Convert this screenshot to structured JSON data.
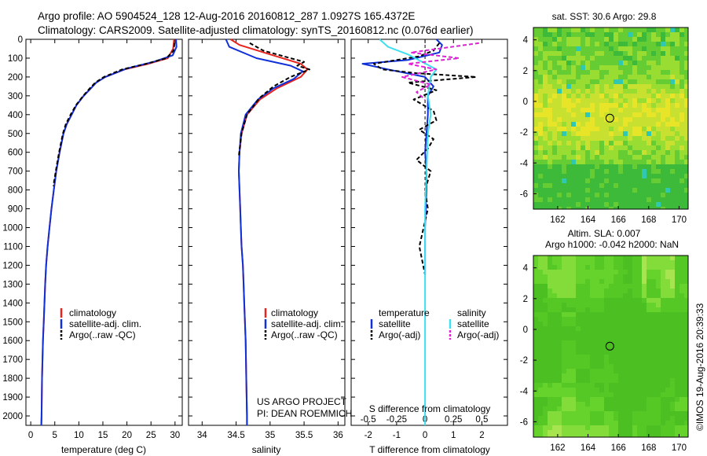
{
  "title": {
    "line1": "Argo profile: AO 5904524_128 12-Aug-2016 20160812_287 1.0927S 165.4372E",
    "line2": "Climatology: CARS2009. Satellite-adjusted climatology: synTS_20160812.nc (0.076d earlier)"
  },
  "colors": {
    "climatology": "#e8231d",
    "satellite_t": "#1030d8",
    "argo": "#000000",
    "satellite_s": "#3ee0f0",
    "argo_s": "#e020d8"
  },
  "project": {
    "line1": "US ARGO PROJECT",
    "line2": "PI: DEAN ROEMMICH"
  },
  "footer": "©IMOS 19-Aug-2016 20:39:33",
  "chart_data": [
    {
      "type": "line",
      "name": "temperature profile",
      "xlabel": "temperature (deg C)",
      "ylabel": "",
      "xlim": [
        -1,
        31.5
      ],
      "ylim": [
        2050,
        0
      ],
      "xticks": [
        0,
        5,
        10,
        15,
        20,
        25,
        30
      ],
      "yticks": [
        0,
        100,
        200,
        300,
        400,
        500,
        600,
        700,
        800,
        900,
        1000,
        1100,
        1200,
        1300,
        1400,
        1500,
        1600,
        1700,
        1800,
        1900,
        2000
      ],
      "legend": [
        "climatology",
        "satellite-adj. clim.",
        "Argo(..raw -QC)"
      ],
      "series": [
        {
          "name": "climatology",
          "color": "#e8231d",
          "style": "solid",
          "x": [
            29.8,
            29.6,
            28.5,
            24.5,
            19.5,
            15.5,
            13.6,
            12.5,
            11.0,
            9.5,
            8.5,
            7.5,
            6.8,
            6.0,
            5.3,
            4.8,
            4.3,
            3.9,
            3.5,
            3.2,
            3.0,
            2.85,
            2.7,
            2.55,
            2.45,
            2.35,
            2.3,
            2.25,
            2.2
          ],
          "y": [
            0,
            50,
            100,
            130,
            160,
            200,
            230,
            260,
            300,
            350,
            400,
            450,
            500,
            600,
            700,
            800,
            900,
            1000,
            1100,
            1200,
            1300,
            1400,
            1500,
            1600,
            1700,
            1800,
            1900,
            2000,
            2050
          ]
        },
        {
          "name": "satellite-adj. clim.",
          "color": "#1030d8",
          "style": "solid",
          "x": [
            30.2,
            30.3,
            29.5,
            25.5,
            20.0,
            15.5,
            13.6,
            12.5,
            11.0,
            9.5,
            8.5,
            7.5,
            6.8,
            6.0,
            5.3,
            4.8,
            4.3,
            3.9,
            3.5,
            3.2,
            3.0,
            2.85,
            2.7,
            2.55,
            2.45,
            2.35,
            2.3,
            2.25,
            2.2
          ],
          "y": [
            0,
            40,
            85,
            120,
            155,
            200,
            230,
            260,
            300,
            350,
            400,
            450,
            500,
            600,
            700,
            800,
            900,
            1000,
            1100,
            1200,
            1300,
            1400,
            1500,
            1600,
            1700,
            1800,
            1900,
            2000,
            2050
          ]
        },
        {
          "name": "Argo(..raw -QC)",
          "color": "#000000",
          "style": "dashed",
          "x": [
            29.9,
            29.7,
            28.2,
            24.0,
            19.0,
            15.2,
            13.4,
            12.3,
            10.9,
            9.4,
            8.3,
            7.3,
            6.7,
            5.9,
            5.2,
            4.7
          ],
          "y": [
            20,
            60,
            100,
            130,
            160,
            200,
            230,
            260,
            300,
            350,
            400,
            450,
            500,
            600,
            700,
            780
          ]
        }
      ]
    },
    {
      "type": "line",
      "name": "salinity profile",
      "xlabel": "salinity",
      "ylabel": "",
      "xlim": [
        33.8,
        36.1
      ],
      "ylim": [
        2050,
        0
      ],
      "xticks": [
        34,
        34.5,
        35,
        35.5,
        36
      ],
      "legend": [
        "climatology",
        "satellite-adj. clim.",
        "Argo(..raw -QC)"
      ],
      "series": [
        {
          "name": "climatology",
          "color": "#e8231d",
          "style": "solid",
          "x": [
            34.42,
            34.55,
            35.0,
            35.45,
            35.55,
            35.45,
            35.1,
            34.85,
            34.66,
            34.58,
            34.55,
            34.54,
            34.55,
            34.56,
            34.57,
            34.58,
            34.6,
            34.61,
            34.62,
            34.63,
            34.64,
            34.65,
            34.66,
            34.66
          ],
          "y": [
            0,
            30,
            80,
            130,
            160,
            200,
            260,
            320,
            400,
            500,
            600,
            700,
            800,
            900,
            1000,
            1100,
            1200,
            1300,
            1400,
            1500,
            1600,
            1800,
            2000,
            2050
          ]
        },
        {
          "name": "satellite-adj. clim.",
          "color": "#1030d8",
          "style": "solid",
          "x": [
            34.35,
            34.4,
            34.8,
            35.3,
            35.48,
            35.35,
            35.05,
            34.82,
            34.64,
            34.57,
            34.55,
            34.54,
            34.55,
            34.56,
            34.57,
            34.58,
            34.6,
            34.61,
            34.62,
            34.63,
            34.64,
            34.65,
            34.66,
            34.66
          ],
          "y": [
            0,
            40,
            100,
            140,
            170,
            210,
            260,
            320,
            400,
            500,
            600,
            700,
            800,
            900,
            1000,
            1100,
            1200,
            1300,
            1400,
            1500,
            1600,
            1800,
            2000,
            2050
          ]
        },
        {
          "name": "Argo(..raw -QC)",
          "color": "#000000",
          "style": "dashed",
          "x": [
            34.7,
            34.9,
            35.3,
            35.5,
            35.4,
            35.58,
            35.3,
            35.05,
            34.85,
            34.66,
            34.58,
            34.54
          ],
          "y": [
            20,
            60,
            100,
            120,
            140,
            160,
            200,
            250,
            310,
            400,
            500,
            620
          ]
        }
      ]
    },
    {
      "type": "line",
      "name": "difference from climatology",
      "xlabel": "T difference from climatology",
      "xlabel2": "S difference from climatology",
      "xlim": [
        -2.6,
        2.9
      ],
      "ylim": [
        2050,
        0
      ],
      "xticks": [
        -2,
        -1,
        0,
        1,
        2
      ],
      "xticks2": [
        -0.5,
        -0.25,
        0,
        0.25,
        0.5
      ],
      "legend": {
        "temperature": [
          "satellite",
          "Argo(-adj)"
        ],
        "salinity": [
          "satellite",
          "Argo(-adj)"
        ]
      },
      "legend_titles": [
        "temperature",
        "salinity"
      ],
      "series": [
        {
          "name": "temperature satellite",
          "color": "#1030d8",
          "style": "solid",
          "x": [
            0.4,
            0.6,
            0.5,
            -0.6,
            -2.2,
            -1.3,
            0.0,
            0.3,
            0.1,
            0.1,
            0.05,
            0.0,
            0.05,
            0.05,
            0.0,
            0.0
          ],
          "y": [
            0,
            30,
            70,
            110,
            130,
            160,
            200,
            250,
            300,
            400,
            500,
            600,
            700,
            800,
            1000,
            1250
          ]
        },
        {
          "name": "temperature Argo(-adj)",
          "color": "#000000",
          "style": "dashed",
          "x": [
            0.5,
            0.3,
            -0.2,
            -1.8,
            -1.5,
            -0.3,
            1.8,
            -0.6,
            0.4,
            -0.4,
            0.3,
            0.4,
            -0.2,
            0.3,
            0.1,
            -0.3,
            0.2,
            0.0,
            0.1,
            -0.2,
            0.0
          ],
          "y": [
            20,
            60,
            90,
            130,
            160,
            180,
            200,
            230,
            270,
            320,
            380,
            430,
            480,
            530,
            580,
            640,
            700,
            800,
            900,
            1100,
            1250
          ]
        },
        {
          "name": "salinity satellite",
          "color": "#3ee0f0",
          "style": "solid",
          "x": [
            -1.6,
            -1.3,
            -0.6,
            -0.1,
            0.4,
            0.2,
            0.1,
            0.2,
            0.1,
            0.05,
            0.0,
            0.0,
            0.0,
            0.0
          ],
          "y": [
            0,
            40,
            80,
            120,
            160,
            200,
            300,
            400,
            500,
            700,
            900,
            1300,
            1700,
            2050
          ]
        },
        {
          "name": "salinity Argo(-adj)",
          "color": "#e020d8",
          "style": "dashed",
          "x": [
            1.9,
            -0.5,
            1.2,
            -0.6,
            0.4,
            -0.8,
            0.2,
            -0.3,
            0.0
          ],
          "y": [
            20,
            70,
            100,
            130,
            160,
            200,
            240,
            280,
            320
          ]
        }
      ]
    },
    {
      "type": "heatmap",
      "name": "SST map",
      "title": "sat. SST: 30.6 Argo: 29.8",
      "xlim": [
        160.4,
        170.6
      ],
      "ylim": [
        -7.0,
        4.8
      ],
      "xticks": [
        162,
        164,
        166,
        168,
        170
      ],
      "yticks": [
        -6,
        -4,
        -2,
        0,
        2,
        4
      ],
      "marker": {
        "lon": 165.44,
        "lat": -1.09
      }
    },
    {
      "type": "heatmap",
      "name": "SLA map",
      "title": "Altim. SLA: 0.007",
      "subtitle": "Argo h1000: -0.042 h2000: NaN",
      "xlim": [
        160.4,
        170.6
      ],
      "ylim": [
        -7.0,
        4.8
      ],
      "xticks": [
        162,
        164,
        166,
        168,
        170
      ],
      "yticks": [
        -6,
        -4,
        -2,
        0,
        2,
        4
      ],
      "marker": {
        "lon": 165.44,
        "lat": -1.09
      }
    }
  ]
}
